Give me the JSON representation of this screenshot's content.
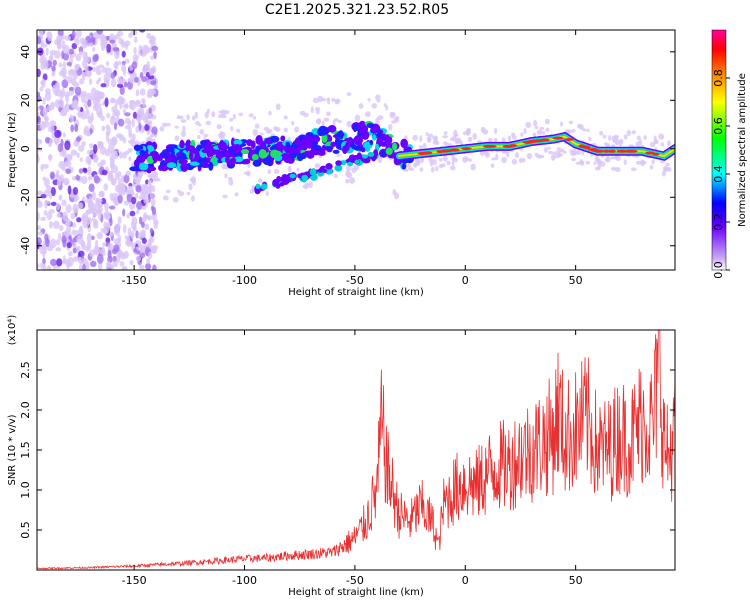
{
  "title": "C2E1.2025.321.23.52.R05",
  "colors": {
    "snr_line": "#e83030",
    "scatter_dot": "#c8a8f5",
    "axis": "#000000"
  },
  "colorbar": {
    "label": "Normalized spectral amplitude",
    "ticks": [
      "0.0",
      "0.2",
      "0.4",
      "0.6",
      "0.8"
    ],
    "range": [
      0,
      1
    ],
    "colormap": [
      "#ffffff",
      "#c8a8f5",
      "#6a00ff",
      "#0000ff",
      "#00ffff",
      "#00ff00",
      "#ffff00",
      "#ff8000",
      "#ff0000",
      "#ff00a0"
    ]
  },
  "chart_data": [
    {
      "type": "heatmap",
      "xlabel": "Height of straight line (km)",
      "ylabel": "Frequency (Hz)",
      "xlim": [
        -194,
        95
      ],
      "ylim": [
        -50,
        49
      ],
      "xticks": [
        -150,
        -100,
        -50,
        0,
        50
      ],
      "xtick_labels": [
        "-150",
        "-100",
        "-50",
        "0",
        "50"
      ],
      "yticks": [
        -40,
        -20,
        0,
        20,
        40
      ],
      "ytick_labels": [
        "-40",
        "-20",
        "0",
        "20",
        "40"
      ],
      "trend": {
        "x": [
          -150,
          -130,
          -110,
          -90,
          -70,
          -50,
          -40,
          -30,
          -20,
          -10,
          0,
          10,
          20,
          30,
          40,
          45,
          50,
          60,
          70,
          80,
          90,
          95
        ],
        "y": [
          -4,
          -3,
          -2,
          -1,
          2,
          5,
          5,
          -3,
          -2,
          -1,
          0,
          1,
          1,
          3,
          4,
          5,
          2,
          -1,
          -1,
          -1,
          -3,
          0
        ]
      },
      "secondary_branch": {
        "x": [
          -95,
          -80,
          -70,
          -60,
          -50,
          -40
        ],
        "y": [
          -17,
          -12,
          -11,
          -8,
          -5,
          -2
        ]
      },
      "noise_region_x": [
        -194,
        -140
      ]
    },
    {
      "type": "line",
      "xlabel": "Height of straight line (km)",
      "ylabel": "SNR (10 * v/v)",
      "y_multiplier": "(x10⁴)",
      "xlim": [
        -194,
        95
      ],
      "ylim": [
        0,
        3.0
      ],
      "xticks": [
        -150,
        -100,
        -50,
        0,
        50
      ],
      "xtick_labels": [
        "-150",
        "-100",
        "-50",
        "0",
        "50"
      ],
      "yticks": [
        0.5,
        1.0,
        1.5,
        2.0,
        2.5
      ],
      "ytick_labels": [
        "0.5",
        "1.0",
        "1.5",
        "2.0",
        "2.5"
      ],
      "series": [
        {
          "x": [
            -194,
            -170,
            -150,
            -130,
            -120,
            -110,
            -100,
            -90,
            -80,
            -70,
            -60,
            -50,
            -45,
            -40,
            -38,
            -35,
            -30,
            -25,
            -20,
            -15,
            -12,
            -10,
            -5,
            0,
            5,
            10,
            15,
            20,
            25,
            30,
            35,
            40,
            42,
            45,
            50,
            55,
            60,
            65,
            70,
            75,
            80,
            85,
            88,
            90,
            92,
            95
          ],
          "y": [
            0.02,
            0.03,
            0.05,
            0.08,
            0.1,
            0.12,
            0.14,
            0.15,
            0.18,
            0.2,
            0.22,
            0.4,
            0.6,
            1.0,
            1.8,
            1.2,
            0.7,
            0.6,
            0.8,
            0.6,
            0.3,
            0.8,
            1.0,
            1.1,
            1.05,
            1.2,
            1.3,
            1.3,
            1.45,
            1.5,
            1.6,
            1.7,
            2.0,
            1.65,
            1.75,
            1.9,
            1.5,
            1.5,
            1.7,
            1.6,
            1.9,
            1.8,
            2.6,
            1.6,
            1.4,
            1.7
          ]
        }
      ]
    }
  ]
}
